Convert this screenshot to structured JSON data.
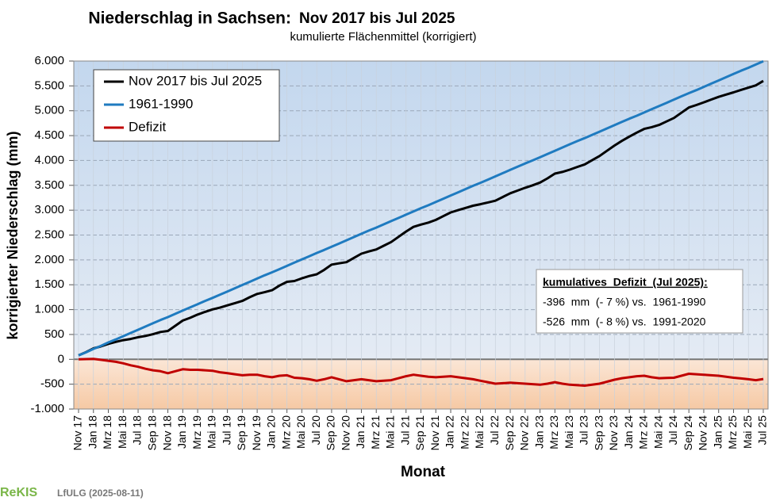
{
  "chart_data": {
    "type": "line",
    "title": "Niederschlag in Sachsen:",
    "title_period": "Nov 2017 bis Jul 2025",
    "subtitle": "kumulierte Flächenmittel (korrigiert)",
    "x_label": "Monat",
    "y_label": "korrigierter Niederschlag (mm)",
    "legend": "upper left",
    "grid": true,
    "categories": [
      "Nov 17",
      null,
      "Jan 18",
      null,
      "Mrz 18",
      null,
      "Mai 18",
      null,
      "Jul 18",
      null,
      "Sep 18",
      null,
      "Nov 18",
      null,
      "Jan 19",
      null,
      "Mrz 19",
      null,
      "Mai 19",
      null,
      "Jul 19",
      null,
      "Sep 19",
      null,
      "Nov 19",
      null,
      "Jan 20",
      null,
      "Mrz 20",
      null,
      "Mai 20",
      null,
      "Jul 20",
      null,
      "Sep 20",
      null,
      "Nov 20",
      null,
      "Jan 21",
      null,
      "Mrz 21",
      null,
      "Mai 21",
      null,
      "Jul 21",
      null,
      "Sep 21",
      null,
      "Nov 21",
      null,
      "Jan 22",
      null,
      "Mrz 22",
      null,
      "Mai 22",
      null,
      "Jul 22",
      null,
      "Sep 22",
      null,
      "Nov 22",
      null,
      "Jan 23",
      null,
      "Mrz 23",
      null,
      "Mai 23",
      null,
      "Jul 23",
      null,
      "Sep 23",
      null,
      "Nov 23",
      null,
      "Jan 24",
      null,
      "Mrz 24",
      null,
      "Mai 24",
      null,
      "Jul 24",
      null,
      "Sep 24",
      null,
      "Nov 24",
      null,
      "Jan 25",
      null,
      "Mrz 25",
      null,
      "Mai 25",
      null,
      "Jul 25"
    ],
    "series": [
      {
        "name": "Nov 2017 bis Jul 2025",
        "color": "#000000",
        "values": [
          80,
          145,
          220,
          260,
          310,
          350,
          385,
          410,
          445,
          470,
          505,
          550,
          570,
          675,
          780,
          835,
          900,
          955,
          1005,
          1040,
          1085,
          1130,
          1175,
          1250,
          1315,
          1350,
          1390,
          1485,
          1560,
          1575,
          1630,
          1675,
          1710,
          1800,
          1905,
          1930,
          1955,
          2040,
          2125,
          2170,
          2210,
          2285,
          2360,
          2465,
          2570,
          2665,
          2710,
          2750,
          2805,
          2880,
          2955,
          3000,
          3045,
          3090,
          3120,
          3155,
          3190,
          3265,
          3340,
          3395,
          3450,
          3500,
          3555,
          3640,
          3735,
          3770,
          3815,
          3870,
          3920,
          4005,
          4090,
          4195,
          4300,
          4395,
          4480,
          4560,
          4635,
          4670,
          4715,
          4785,
          4855,
          4960,
          5065,
          5115,
          5170,
          5225,
          5280,
          5325,
          5370,
          5420,
          5465,
          5510,
          5599
        ]
      },
      {
        "name": "1961-1990",
        "color": "#1f7bc0",
        "values": [
          80,
          140,
          210,
          270,
          340,
          400,
          465,
          530,
          595,
          660,
          725,
          790,
          850,
          915,
          980,
          1045,
          1110,
          1175,
          1235,
          1300,
          1365,
          1430,
          1495,
          1560,
          1625,
          1690,
          1750,
          1815,
          1880,
          1945,
          2010,
          2075,
          2140,
          2200,
          2265,
          2330,
          2395,
          2460,
          2525,
          2590,
          2650,
          2715,
          2780,
          2845,
          2910,
          2975,
          3040,
          3100,
          3165,
          3230,
          3295,
          3360,
          3425,
          3490,
          3550,
          3615,
          3680,
          3745,
          3810,
          3875,
          3940,
          4000,
          4065,
          4130,
          4195,
          4260,
          4325,
          4390,
          4450,
          4515,
          4580,
          4645,
          4710,
          4775,
          4840,
          4900,
          4965,
          5030,
          5095,
          5160,
          5225,
          5290,
          5355,
          5415,
          5480,
          5545,
          5610,
          5675,
          5740,
          5805,
          5865,
          5930,
          5995
        ]
      },
      {
        "name": "Defizit",
        "color": "#c00000",
        "values": [
          0,
          5,
          10,
          -10,
          -30,
          -50,
          -80,
          -120,
          -150,
          -190,
          -220,
          -240,
          -280,
          -240,
          -200,
          -210,
          -210,
          -220,
          -230,
          -260,
          -280,
          -300,
          -320,
          -310,
          -310,
          -340,
          -360,
          -330,
          -320,
          -370,
          -380,
          -400,
          -430,
          -400,
          -360,
          -400,
          -440,
          -420,
          -400,
          -420,
          -440,
          -430,
          -420,
          -380,
          -340,
          -310,
          -330,
          -350,
          -360,
          -350,
          -340,
          -360,
          -380,
          -400,
          -430,
          -460,
          -490,
          -480,
          -470,
          -480,
          -490,
          -500,
          -510,
          -490,
          -460,
          -490,
          -510,
          -520,
          -530,
          -510,
          -490,
          -450,
          -410,
          -380,
          -360,
          -340,
          -330,
          -360,
          -380,
          -375,
          -370,
          -330,
          -290,
          -300,
          -310,
          -320,
          -330,
          -350,
          -370,
          -385,
          -400,
          -420,
          -396
        ]
      }
    ],
    "ylim": [
      -1000,
      6000
    ],
    "yticks": [
      {
        "value": -1000,
        "label": "-1.000"
      },
      -500,
      0,
      500,
      {
        "value": 1000,
        "label": "1.000"
      },
      {
        "value": 1500,
        "label": "1.500"
      },
      {
        "value": 2000,
        "label": "2.000"
      },
      {
        "value": 2500,
        "label": "2.500"
      },
      {
        "value": 3000,
        "label": "3.000"
      },
      {
        "value": 3500,
        "label": "3.500"
      },
      {
        "value": 4000,
        "label": "4.000"
      },
      {
        "value": 4500,
        "label": "4.500"
      },
      {
        "value": 5000,
        "label": "5.000"
      },
      {
        "value": 5500,
        "label": "5.500"
      },
      {
        "value": 6000,
        "label": "6.000"
      }
    ],
    "annotations": [
      "kumulatives  Defizit  (Jul 2025):",
      "-396  mm  (- 7 %) vs.  1961-1990",
      "-526  mm  (- 8 %) vs.  1991-2020"
    ],
    "footer_logo": "ReKIS",
    "footer_text": "LfULG (2025-08-11)"
  }
}
